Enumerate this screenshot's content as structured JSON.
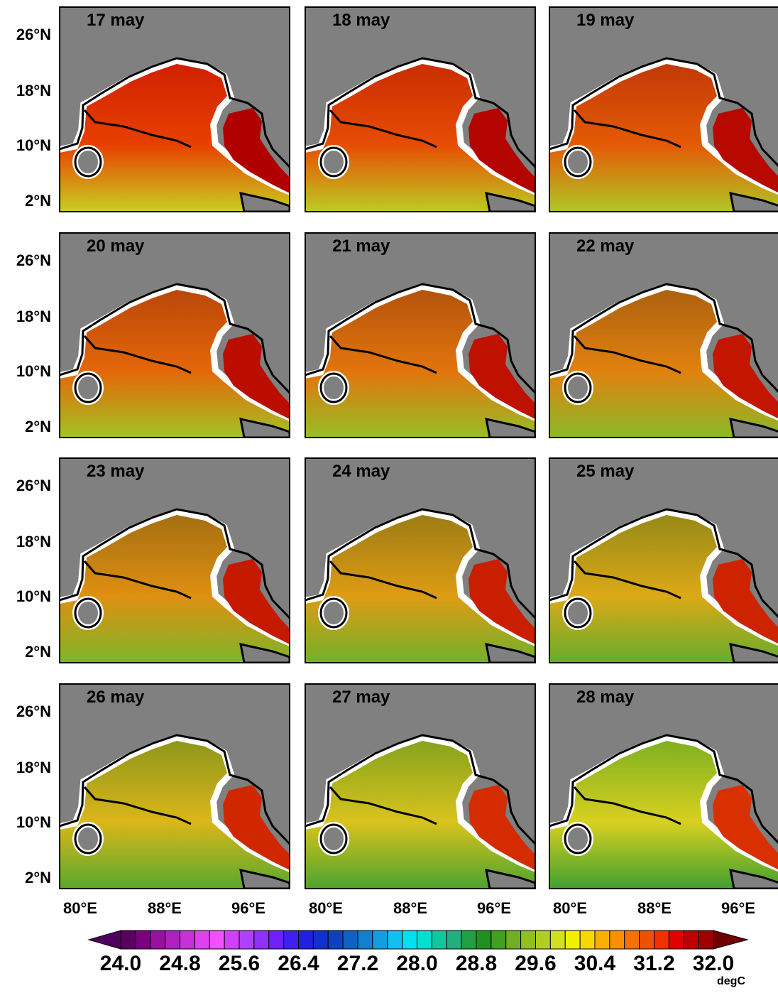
{
  "panels": [
    {
      "title": "17 may"
    },
    {
      "title": "18 may"
    },
    {
      "title": "19 may"
    },
    {
      "title": "20 may"
    },
    {
      "title": "21 may"
    },
    {
      "title": "22 may"
    },
    {
      "title": "23 may"
    },
    {
      "title": "24 may"
    },
    {
      "title": "25 may"
    },
    {
      "title": "26 may"
    },
    {
      "title": "27 may"
    },
    {
      "title": "28 may"
    }
  ],
  "lat_labels": [
    "26°N",
    "18°N",
    "10°N",
    "2°N"
  ],
  "lon_labels": [
    "80°E",
    "88°E",
    "96°E"
  ],
  "colorbar": {
    "labels": [
      "24.0",
      "24.8",
      "25.6",
      "26.4",
      "27.2",
      "28.0",
      "28.8",
      "29.6",
      "30.4",
      "31.2",
      "32.0"
    ],
    "unit": "degC",
    "low_color": "#500060",
    "high_color": "#700000",
    "colors": [
      "#5a0060",
      "#7a0080",
      "#9a10a0",
      "#b020c0",
      "#c830d8",
      "#e040f0",
      "#f050ff",
      "#d040ff",
      "#b040ff",
      "#9030ff",
      "#7020ff",
      "#4020f0",
      "#2020e0",
      "#1030d0",
      "#1040c0",
      "#1060c8",
      "#1080d0",
      "#10a0e0",
      "#10c0f0",
      "#00e0f0",
      "#00e0d0",
      "#10c8a0",
      "#20b080",
      "#20a040",
      "#209020",
      "#40a020",
      "#70b020",
      "#90c020",
      "#b0d020",
      "#d0e020",
      "#f0f000",
      "#f8d800",
      "#f8b000",
      "#f89000",
      "#f87000",
      "#f05000",
      "#f03000",
      "#e00000",
      "#c00000",
      "#a00000"
    ]
  }
}
